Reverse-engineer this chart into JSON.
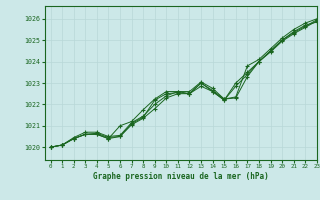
{
  "title": "Graphe pression niveau de la mer (hPa)",
  "bg_color": "#cce8e8",
  "grid_color": "#b8d8d8",
  "line_color": "#1a6620",
  "marker_color": "#1a6620",
  "xlim": [
    -0.5,
    23
  ],
  "ylim": [
    1019.4,
    1026.6
  ],
  "yticks": [
    1020,
    1021,
    1022,
    1023,
    1024,
    1025,
    1026
  ],
  "xticks": [
    0,
    1,
    2,
    3,
    4,
    5,
    6,
    7,
    8,
    9,
    10,
    11,
    12,
    13,
    14,
    15,
    16,
    17,
    18,
    19,
    20,
    21,
    22,
    23
  ],
  "series": [
    [
      1020.0,
      1020.1,
      1020.4,
      1020.6,
      1020.65,
      1020.45,
      1020.5,
      1021.05,
      1021.35,
      1021.8,
      1022.3,
      1022.5,
      1022.5,
      1023.0,
      1022.65,
      1022.25,
      1022.3,
      1023.3,
      1024.0,
      1024.5,
      1025.0,
      1025.4,
      1025.7,
      1025.85
    ],
    [
      1020.0,
      1020.1,
      1020.45,
      1020.7,
      1020.7,
      1020.5,
      1020.55,
      1021.15,
      1021.45,
      1022.0,
      1022.4,
      1022.6,
      1022.6,
      1023.05,
      1022.75,
      1022.25,
      1022.35,
      1023.8,
      1024.1,
      1024.6,
      1025.1,
      1025.5,
      1025.8,
      1026.0
    ],
    [
      1020.0,
      1020.1,
      1020.4,
      1020.6,
      1020.6,
      1020.4,
      1020.5,
      1021.1,
      1021.4,
      1022.2,
      1022.5,
      1022.55,
      1022.5,
      1022.85,
      1022.6,
      1022.2,
      1023.0,
      1023.5,
      1024.0,
      1024.5,
      1025.0,
      1025.35,
      1025.65,
      1025.95
    ],
    [
      1020.0,
      1020.1,
      1020.4,
      1020.6,
      1020.6,
      1020.4,
      1021.0,
      1021.2,
      1021.75,
      1022.25,
      1022.6,
      1022.6,
      1022.5,
      1023.0,
      1022.6,
      1022.2,
      1022.85,
      1023.4,
      1024.0,
      1024.45,
      1024.95,
      1025.3,
      1025.6,
      1025.9
    ]
  ]
}
